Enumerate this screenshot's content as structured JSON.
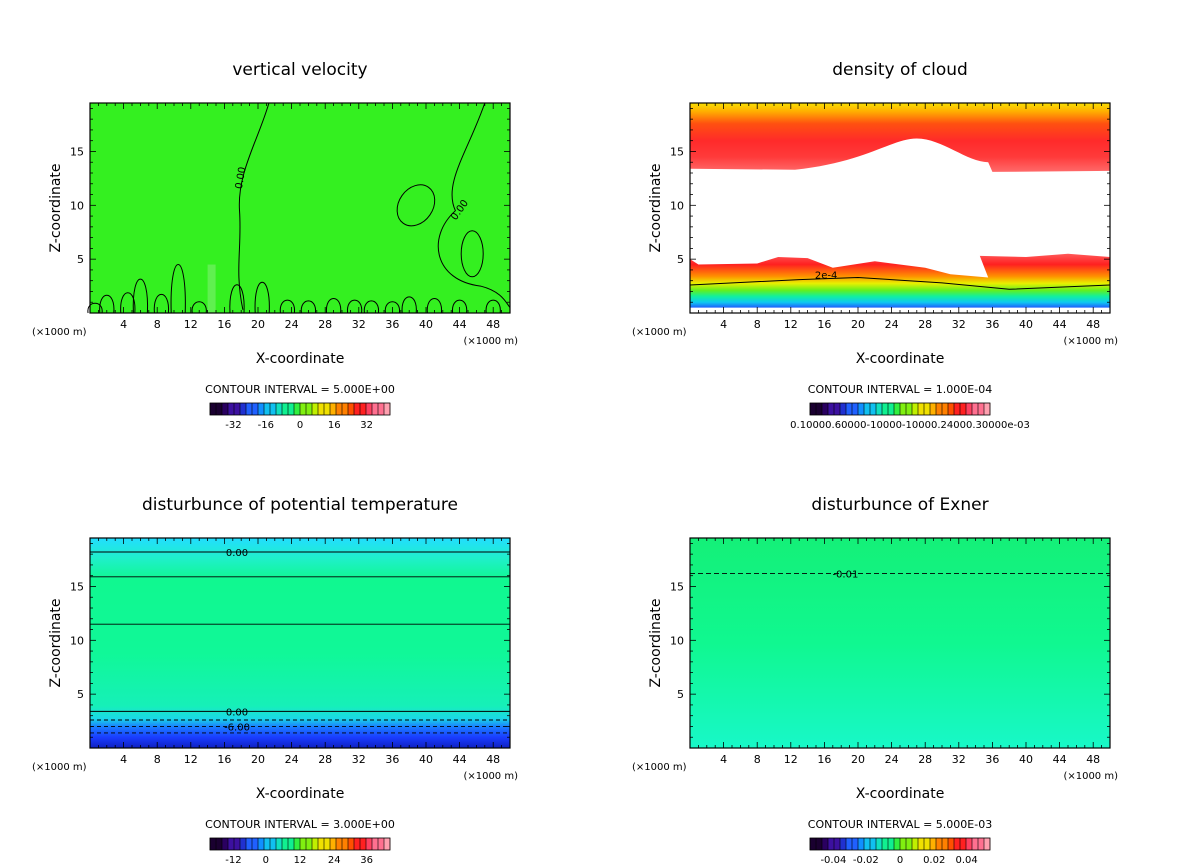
{
  "chart_data": [
    {
      "type": "heatmap",
      "title": "vertical velocity",
      "xlabel": "X-coordinate",
      "ylabel": "Z-coordinate",
      "x_unit": "(×1000 m)",
      "x_ticks": [
        "4",
        "8",
        "12",
        "16",
        "20",
        "24",
        "28",
        "32",
        "36",
        "40",
        "44",
        "48"
      ],
      "y_ticks": [
        "5",
        "10",
        "15"
      ],
      "xlim": [
        0,
        50
      ],
      "ylim": [
        0,
        19.5
      ],
      "contour_interval": "CONTOUR INTERVAL = 5.000E+00",
      "colorbar_labels": [
        "-32",
        "-16",
        "0",
        "16",
        "32"
      ],
      "contour_labels": [
        "0.00",
        "0.00"
      ],
      "field": "uniform-green"
    },
    {
      "type": "heatmap",
      "title": "density of cloud",
      "xlabel": "X-coordinate",
      "ylabel": "Z-coordinate",
      "x_unit": "(×1000 m)",
      "x_ticks": [
        "4",
        "8",
        "12",
        "16",
        "20",
        "24",
        "28",
        "32",
        "36",
        "40",
        "44",
        "48"
      ],
      "y_ticks": [
        "5",
        "10",
        "15"
      ],
      "xlim": [
        0,
        50
      ],
      "ylim": [
        0,
        19.5
      ],
      "contour_interval": "CONTOUR INTERVAL = 1.000E-04",
      "colorbar_text": "0.10000.60000-10000-10000.24000.30000e-03",
      "contour_labels": [
        "2e-4"
      ],
      "field": "cloud-layers"
    },
    {
      "type": "heatmap",
      "title": "disturbunce of potential temperature",
      "xlabel": "X-coordinate",
      "ylabel": "Z-coordinate",
      "x_unit": "(×1000 m)",
      "x_ticks": [
        "4",
        "8",
        "12",
        "16",
        "20",
        "24",
        "28",
        "32",
        "36",
        "40",
        "44",
        "48"
      ],
      "y_ticks": [
        "5",
        "10",
        "15"
      ],
      "xlim": [
        0,
        50
      ],
      "ylim": [
        0,
        19.5
      ],
      "contour_interval": "CONTOUR INTERVAL = 3.000E+00",
      "colorbar_labels": [
        "-12",
        "0",
        "12",
        "24",
        "36"
      ],
      "contour_labels": [
        "0.00",
        "0.00",
        "-6.00"
      ],
      "field": "theta-layers"
    },
    {
      "type": "heatmap",
      "title": "disturbunce of Exner",
      "xlabel": "X-coordinate",
      "ylabel": "Z-coordinate",
      "x_unit": "(×1000 m)",
      "x_ticks": [
        "4",
        "8",
        "12",
        "16",
        "20",
        "24",
        "28",
        "32",
        "36",
        "40",
        "44",
        "48"
      ],
      "y_ticks": [
        "5",
        "10",
        "15"
      ],
      "xlim": [
        0,
        50
      ],
      "ylim": [
        0,
        19.5
      ],
      "contour_interval": "CONTOUR INTERVAL = 5.000E-03",
      "colorbar_labels": [
        "-0.04",
        "-0.02",
        "0",
        "0.02",
        "0.04"
      ],
      "contour_labels": [
        "-0.01"
      ],
      "field": "exner-gradient"
    }
  ]
}
